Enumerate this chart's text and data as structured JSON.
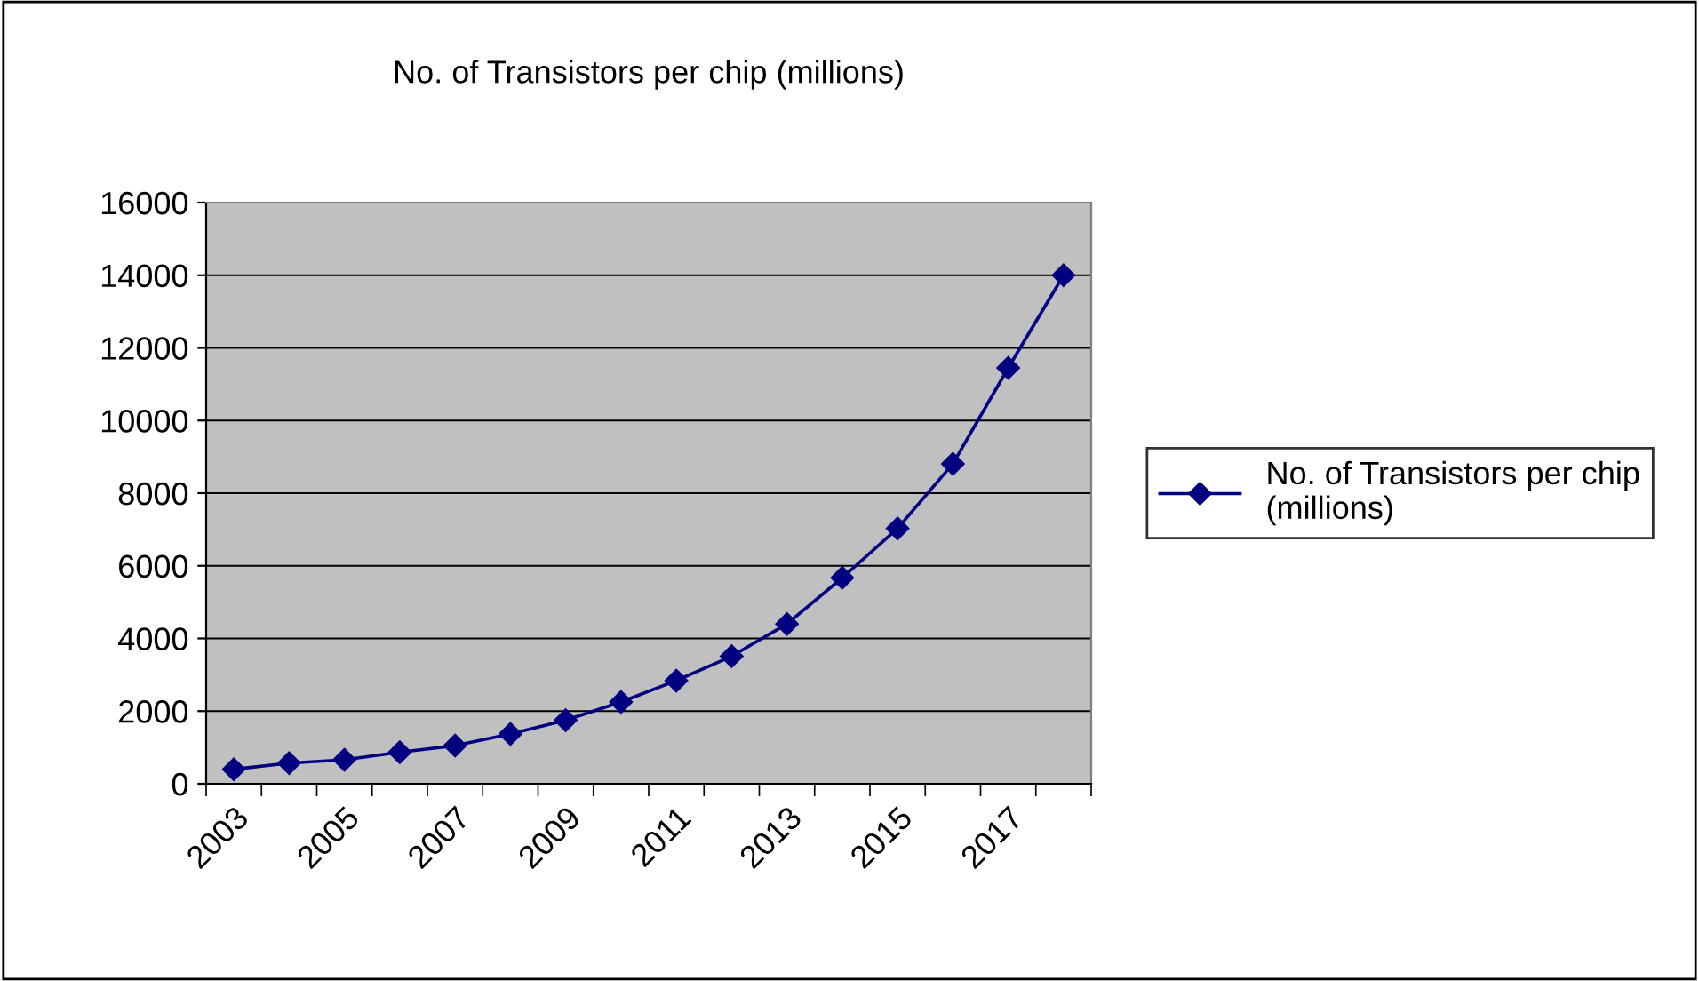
{
  "chart_data": {
    "type": "line",
    "title": "No. of Transistors per chip (millions)",
    "categories": [
      "2003",
      null,
      "2005",
      null,
      "2007",
      null,
      "2009",
      null,
      "2011",
      null,
      "2013",
      null,
      "2015",
      null,
      "2017",
      null
    ],
    "series": [
      {
        "name": "No. of Transistors per chip (millions)",
        "color": "#000080",
        "values": [
          400,
          570,
          660,
          870,
          1050,
          1370,
          1750,
          2250,
          2840,
          3510,
          4400,
          5670,
          7030,
          8810,
          11450,
          14000
        ]
      }
    ],
    "ylim": [
      0,
      16000
    ],
    "yticks": [
      0,
      2000,
      4000,
      6000,
      8000,
      10000,
      12000,
      14000,
      16000
    ],
    "grid": "y",
    "legend": "right",
    "marker": "diamond",
    "line_style": "solid"
  }
}
